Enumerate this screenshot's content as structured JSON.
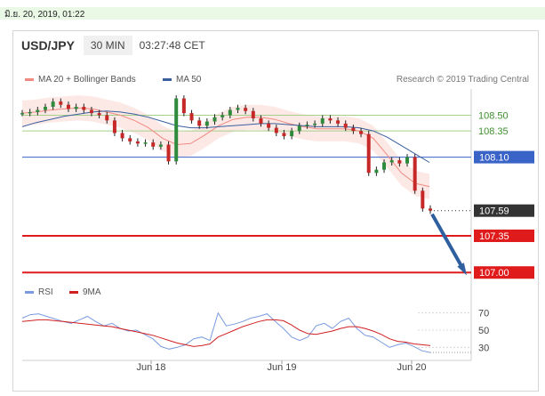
{
  "header": {
    "date_text": "มิ.ย. 20, 2019, 01:22",
    "pair": "USD/JPY",
    "timeframe": "30 MIN",
    "time": "03:27:48 CET"
  },
  "legend": {
    "ma20": "MA 20 + Bollinger Bands",
    "ma50": "MA 50",
    "credit": "Research © 2019 Trading Central",
    "rsi": "RSI",
    "ma9": "9MA"
  },
  "colors": {
    "ma20": "#f08a80",
    "ma50": "#3a5f9f",
    "band": "#fbe0dc",
    "green_level": "#a6d08a",
    "blue_level": "#3a63c8",
    "red_level": "#e01b1b",
    "current": "#333333",
    "arrow": "#2f5f9f",
    "rsi": "#7a9be0",
    "ma9": "#d02020"
  },
  "chart_data": [
    {
      "type": "line",
      "title": "USD/JPY",
      "subtitle": "30 MIN",
      "x_ticks": [
        "Jun 18",
        "Jun 19",
        "Jun 20"
      ],
      "ylim": [
        106.9,
        108.75
      ],
      "levels": [
        {
          "value": 108.5,
          "label": "108.50",
          "kind": "green"
        },
        {
          "value": 108.35,
          "label": "108.35",
          "kind": "green"
        },
        {
          "value": 108.1,
          "label": "108.10",
          "kind": "blue"
        },
        {
          "value": 107.59,
          "label": "107.59",
          "kind": "current"
        },
        {
          "value": 107.35,
          "label": "107.35",
          "kind": "red"
        },
        {
          "value": 107.0,
          "label": "107.00",
          "kind": "red"
        }
      ],
      "series": [
        {
          "name": "MA 20 + Bollinger Bands",
          "values": [
            108.52,
            108.53,
            108.55,
            108.56,
            108.57,
            108.56,
            108.53,
            108.5,
            108.45,
            108.38,
            108.28,
            108.22,
            108.23,
            108.31,
            108.4,
            108.46,
            108.48,
            108.48,
            108.46,
            108.42,
            108.39,
            108.37,
            108.37,
            108.37,
            108.35,
            108.28,
            108.12,
            107.95,
            107.85,
            107.82
          ]
        },
        {
          "name": "MA 50",
          "values": [
            108.39,
            108.43,
            108.46,
            108.49,
            108.51,
            108.53,
            108.54,
            108.53,
            108.51,
            108.48,
            108.44,
            108.4,
            108.38,
            108.38,
            108.39,
            108.4,
            108.41,
            108.42,
            108.42,
            108.41,
            108.4,
            108.39,
            108.39,
            108.39,
            108.38,
            108.35,
            108.29,
            108.21,
            108.13,
            108.05
          ]
        }
      ],
      "price": [
        108.52,
        108.53,
        108.55,
        108.58,
        108.63,
        108.6,
        108.56,
        108.58,
        108.55,
        108.52,
        108.5,
        108.45,
        108.33,
        108.28,
        108.25,
        108.23,
        108.24,
        108.2,
        108.22,
        108.06,
        108.66,
        108.52,
        108.45,
        108.4,
        108.44,
        108.48,
        108.5,
        108.55,
        108.57,
        108.54,
        108.47,
        108.42,
        108.38,
        108.33,
        108.3,
        108.35,
        108.4,
        108.41,
        108.42,
        108.47,
        108.45,
        108.42,
        108.38,
        108.35,
        108.32,
        107.95,
        107.98,
        108.05,
        108.07,
        108.04,
        108.1,
        107.78,
        107.61,
        107.59
      ]
    },
    {
      "type": "line",
      "title": "",
      "ylim": [
        20,
        80
      ],
      "y_ticks": [
        70,
        50,
        30
      ],
      "series": [
        {
          "name": "RSI",
          "values": [
            64,
            68,
            69,
            66,
            63,
            60,
            58,
            62,
            66,
            60,
            55,
            58,
            52,
            49,
            50,
            45,
            40,
            31,
            28,
            30,
            33,
            40,
            42,
            38,
            70,
            55,
            57,
            60,
            64,
            66,
            69,
            60,
            52,
            42,
            38,
            42,
            55,
            58,
            52,
            60,
            64,
            52,
            44,
            42,
            36,
            30,
            33,
            35,
            31,
            26,
            24
          ]
        },
        {
          "name": "9MA",
          "values": [
            60,
            61,
            62,
            62,
            61,
            60,
            59,
            58,
            57,
            56,
            55,
            54,
            52,
            50,
            48,
            46,
            44,
            41,
            38,
            35,
            33,
            31,
            32,
            34,
            42,
            46,
            50,
            54,
            57,
            60,
            62,
            62,
            61,
            56,
            50,
            46,
            45,
            47,
            49,
            52,
            54,
            54,
            52,
            49,
            45,
            40,
            37,
            36,
            34,
            33,
            32
          ]
        }
      ]
    }
  ]
}
